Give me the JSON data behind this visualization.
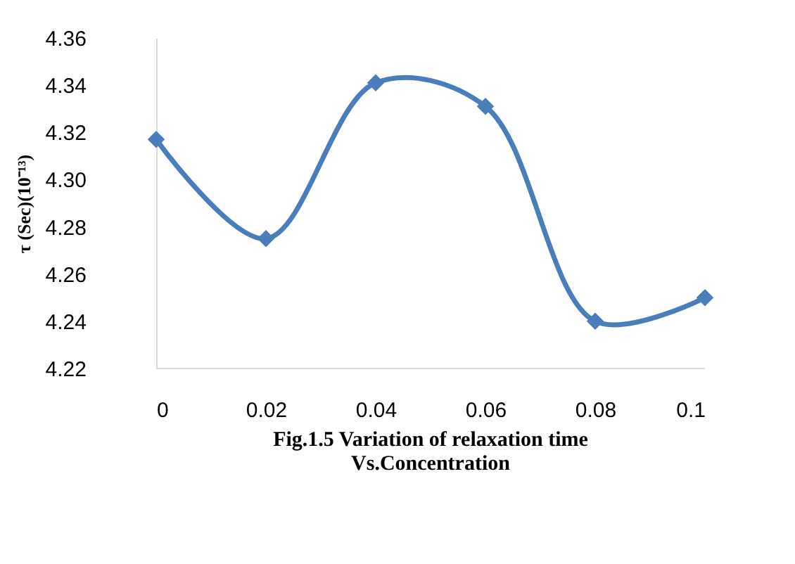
{
  "chart_data": {
    "type": "line",
    "title": "Fig.1.5 Variation of relaxation time Vs.Concentration",
    "ylabel": "τ (Sec)(10⁻¹³)",
    "x": [
      0,
      0.02,
      0.04,
      0.06,
      0.08,
      0.1
    ],
    "series": [
      {
        "color": "#4a7ebb",
        "values": [
          4.317,
          4.275,
          4.341,
          4.331,
          4.24,
          4.25
        ]
      }
    ],
    "xlim": [
      0,
      0.1
    ],
    "xticks": [
      0,
      0.02,
      0.04,
      0.06,
      0.08,
      0.1
    ],
    "ylim": [
      4.22,
      4.36
    ],
    "yticks": [
      4.22,
      4.24,
      4.26,
      4.28,
      {
        "value": 4.3,
        "label": "4.30"
      },
      4.32,
      4.34,
      4.36
    ],
    "marker": "diamond",
    "line_style": "solid",
    "grid": false
  }
}
